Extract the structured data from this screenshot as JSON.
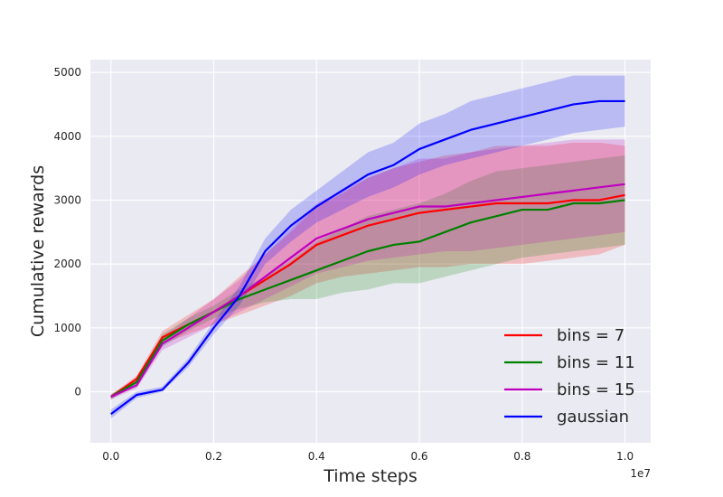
{
  "chart_data": {
    "type": "line",
    "title": "",
    "xlabel": "Time steps",
    "ylabel": "Cumulative rewards",
    "x_offset_label": "1e7",
    "xlim": [
      -0.04,
      1.05
    ],
    "ylim": [
      -800,
      5200
    ],
    "xticks": [
      0.0,
      0.2,
      0.4,
      0.6,
      0.8,
      1.0
    ],
    "xtick_labels": [
      "0.0",
      "0.2",
      "0.4",
      "0.6",
      "0.8",
      "1.0"
    ],
    "yticks": [
      0,
      1000,
      2000,
      3000,
      4000,
      5000
    ],
    "ytick_labels": [
      "0",
      "1000",
      "2000",
      "3000",
      "4000",
      "5000"
    ],
    "grid": true,
    "legend_position": "lower-right",
    "x": [
      0.0,
      0.05,
      0.1,
      0.15,
      0.2,
      0.25,
      0.3,
      0.35,
      0.4,
      0.45,
      0.5,
      0.55,
      0.6,
      0.65,
      0.7,
      0.75,
      0.8,
      0.85,
      0.9,
      0.95,
      1.0
    ],
    "series": [
      {
        "name": "bins = 7",
        "color": "#ff0000",
        "values": [
          -80,
          200,
          850,
          1050,
          1250,
          1500,
          1750,
          2000,
          2300,
          2450,
          2600,
          2700,
          2800,
          2850,
          2900,
          2950,
          2950,
          2950,
          3000,
          3000,
          3080
        ],
        "band": [
          [
            -120,
            -50
          ],
          [
            150,
            250
          ],
          [
            750,
            950
          ],
          [
            900,
            1200
          ],
          [
            1050,
            1450
          ],
          [
            1200,
            1800
          ],
          [
            1350,
            2150
          ],
          [
            1500,
            2500
          ],
          [
            1700,
            2900
          ],
          [
            1800,
            3100
          ],
          [
            1850,
            3350
          ],
          [
            1900,
            3500
          ],
          [
            1950,
            3600
          ],
          [
            1950,
            3700
          ],
          [
            2000,
            3750
          ],
          [
            2000,
            3850
          ],
          [
            2000,
            3850
          ],
          [
            2050,
            3850
          ],
          [
            2100,
            3900
          ],
          [
            2150,
            3900
          ],
          [
            2300,
            3850
          ]
        ]
      },
      {
        "name": "bins = 11",
        "color": "#008000",
        "values": [
          -80,
          150,
          800,
          1050,
          1250,
          1450,
          1600,
          1750,
          1900,
          2050,
          2200,
          2300,
          2350,
          2500,
          2650,
          2750,
          2850,
          2850,
          2950,
          2950,
          3000
        ],
        "band": [
          [
            -120,
            -40
          ],
          [
            100,
            200
          ],
          [
            700,
            900
          ],
          [
            950,
            1150
          ],
          [
            1150,
            1350
          ],
          [
            1300,
            1600
          ],
          [
            1400,
            1800
          ],
          [
            1450,
            2050
          ],
          [
            1450,
            2350
          ],
          [
            1550,
            2550
          ],
          [
            1600,
            2750
          ],
          [
            1700,
            2850
          ],
          [
            1700,
            2950
          ],
          [
            1800,
            3100
          ],
          [
            1900,
            3300
          ],
          [
            2000,
            3450
          ],
          [
            2100,
            3500
          ],
          [
            2150,
            3550
          ],
          [
            2200,
            3600
          ],
          [
            2250,
            3650
          ],
          [
            2300,
            3700
          ]
        ]
      },
      {
        "name": "bins = 15",
        "color": "#bf00bf",
        "values": [
          -80,
          100,
          750,
          1000,
          1250,
          1500,
          1800,
          2100,
          2400,
          2550,
          2700,
          2800,
          2900,
          2900,
          2950,
          3000,
          3050,
          3100,
          3150,
          3200,
          3250
        ],
        "band": [
          [
            -120,
            -40
          ],
          [
            50,
            150
          ],
          [
            650,
            850
          ],
          [
            850,
            1150
          ],
          [
            1050,
            1450
          ],
          [
            1250,
            1750
          ],
          [
            1450,
            2150
          ],
          [
            1650,
            2550
          ],
          [
            1850,
            2950
          ],
          [
            1950,
            3150
          ],
          [
            2050,
            3350
          ],
          [
            2100,
            3500
          ],
          [
            2150,
            3650
          ],
          [
            2200,
            3650
          ],
          [
            2200,
            3750
          ],
          [
            2250,
            3800
          ],
          [
            2300,
            3850
          ],
          [
            2350,
            3900
          ],
          [
            2400,
            3950
          ],
          [
            2450,
            3950
          ],
          [
            2500,
            3950
          ]
        ]
      },
      {
        "name": "gaussian",
        "color": "#0000ff",
        "values": [
          -350,
          -50,
          30,
          450,
          1000,
          1500,
          2200,
          2600,
          2900,
          3150,
          3400,
          3550,
          3800,
          3950,
          4100,
          4200,
          4300,
          4400,
          4500,
          4550,
          4550
        ],
        "band": [
          [
            -420,
            -280
          ],
          [
            -100,
            0
          ],
          [
            0,
            80
          ],
          [
            380,
            520
          ],
          [
            900,
            1100
          ],
          [
            1350,
            1650
          ],
          [
            2000,
            2400
          ],
          [
            2350,
            2850
          ],
          [
            2650,
            3150
          ],
          [
            2850,
            3450
          ],
          [
            3050,
            3750
          ],
          [
            3200,
            3900
          ],
          [
            3400,
            4200
          ],
          [
            3550,
            4350
          ],
          [
            3650,
            4550
          ],
          [
            3750,
            4650
          ],
          [
            3850,
            4750
          ],
          [
            3950,
            4850
          ],
          [
            4050,
            4950
          ],
          [
            4100,
            4950
          ],
          [
            4150,
            4950
          ]
        ]
      }
    ]
  }
}
